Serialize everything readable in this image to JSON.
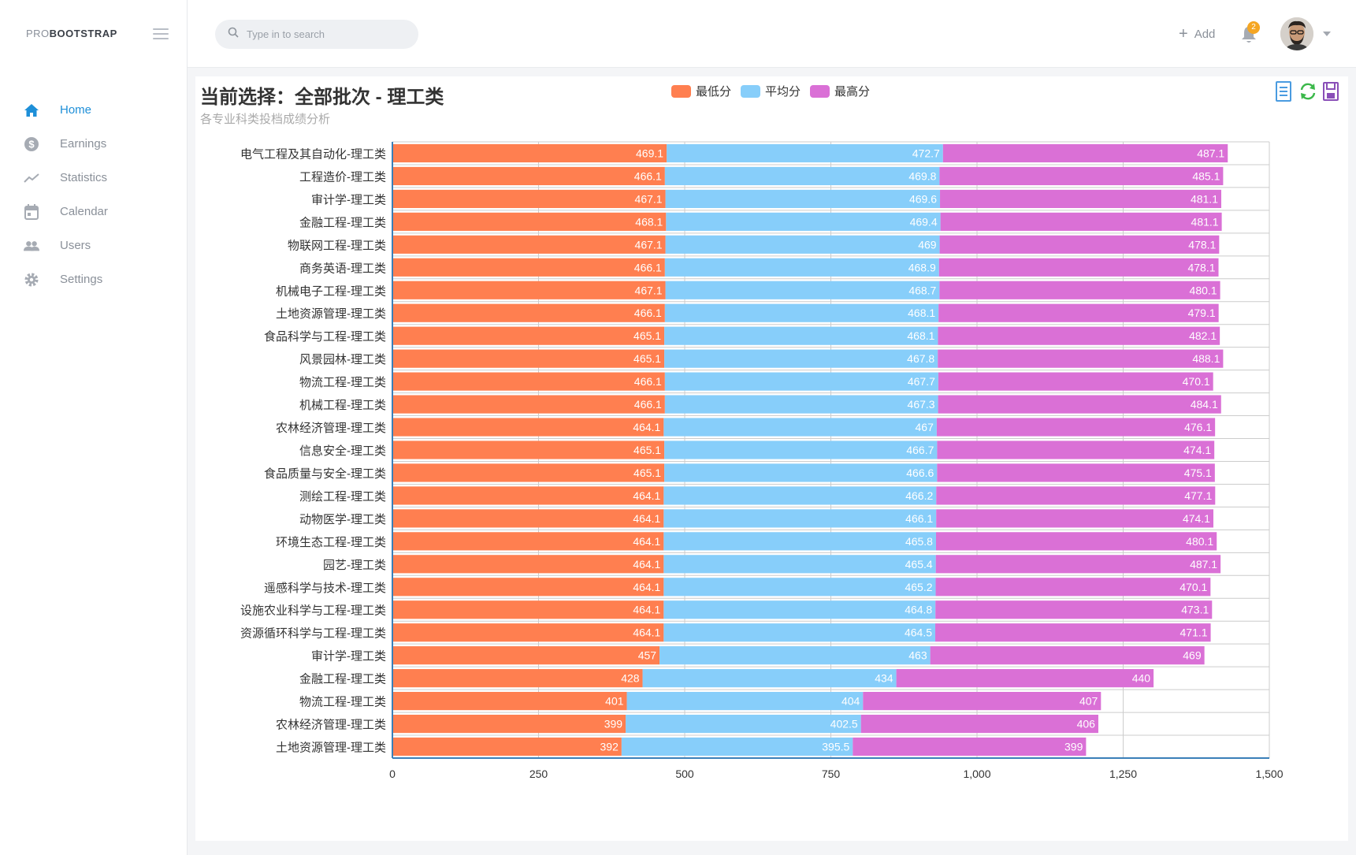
{
  "brand": {
    "prefix": "PRO",
    "name": "BOOTSTRAP"
  },
  "sidebar": {
    "items": [
      {
        "label": "Home",
        "icon": "home-icon",
        "active": true
      },
      {
        "label": "Earnings",
        "icon": "dollar-icon",
        "active": false
      },
      {
        "label": "Statistics",
        "icon": "trend-icon",
        "active": false
      },
      {
        "label": "Calendar",
        "icon": "calendar-icon",
        "active": false
      },
      {
        "label": "Users",
        "icon": "users-icon",
        "active": false
      },
      {
        "label": "Settings",
        "icon": "gear-icon",
        "active": false
      }
    ]
  },
  "header": {
    "search_placeholder": "Type in to search",
    "add_label": "Add",
    "notification_count": "2"
  },
  "colors": {
    "min": "#ff7f50",
    "avg": "#87cefa",
    "max": "#da70d6",
    "accent": "#1e8fd8"
  },
  "chart_data": {
    "type": "bar",
    "orientation": "horizontal",
    "stacked": true,
    "title": "当前选择：全部批次 - 理工类",
    "subtitle": "各专业科类投档成绩分析",
    "legend_position": "top-center",
    "xlim": [
      0,
      1500
    ],
    "xticks": [
      "0",
      "250",
      "500",
      "750",
      "1,000",
      "1,250",
      "1,500"
    ],
    "categories": [
      "电气工程及其自动化-理工类",
      "工程造价-理工类",
      "审计学-理工类",
      "金融工程-理工类",
      "物联网工程-理工类",
      "商务英语-理工类",
      "机械电子工程-理工类",
      "土地资源管理-理工类",
      "食品科学与工程-理工类",
      "风景园林-理工类",
      "物流工程-理工类",
      "机械工程-理工类",
      "农林经济管理-理工类",
      "信息安全-理工类",
      "食品质量与安全-理工类",
      "测绘工程-理工类",
      "动物医学-理工类",
      "环境生态工程-理工类",
      "园艺-理工类",
      "遥感科学与技术-理工类",
      "设施农业科学与工程-理工类",
      "资源循环科学与工程-理工类",
      "审计学-理工类",
      "金融工程-理工类",
      "物流工程-理工类",
      "农林经济管理-理工类",
      "土地资源管理-理工类"
    ],
    "series": [
      {
        "name": "最低分",
        "values": [
          469.1,
          466.1,
          467.1,
          468.1,
          467.1,
          466.1,
          467.1,
          466.1,
          465.1,
          465.1,
          466.1,
          466.1,
          464.1,
          465.1,
          465.1,
          464.1,
          464.1,
          464.1,
          464.1,
          464.1,
          464.1,
          464.1,
          457,
          428,
          401,
          399,
          392
        ]
      },
      {
        "name": "平均分",
        "values": [
          472.7,
          469.8,
          469.6,
          469.4,
          469,
          468.9,
          468.7,
          468.1,
          468.1,
          467.8,
          467.7,
          467.3,
          467,
          466.7,
          466.6,
          466.2,
          466.1,
          465.8,
          465.4,
          465.2,
          464.8,
          464.5,
          463,
          434,
          404,
          402.5,
          395.5
        ]
      },
      {
        "name": "最高分",
        "values": [
          487.1,
          485.1,
          481.1,
          481.1,
          478.1,
          478.1,
          480.1,
          479.1,
          482.1,
          488.1,
          470.1,
          484.1,
          476.1,
          474.1,
          475.1,
          477.1,
          474.1,
          480.1,
          487.1,
          470.1,
          473.1,
          471.1,
          469,
          440,
          407,
          406,
          399
        ]
      }
    ]
  }
}
